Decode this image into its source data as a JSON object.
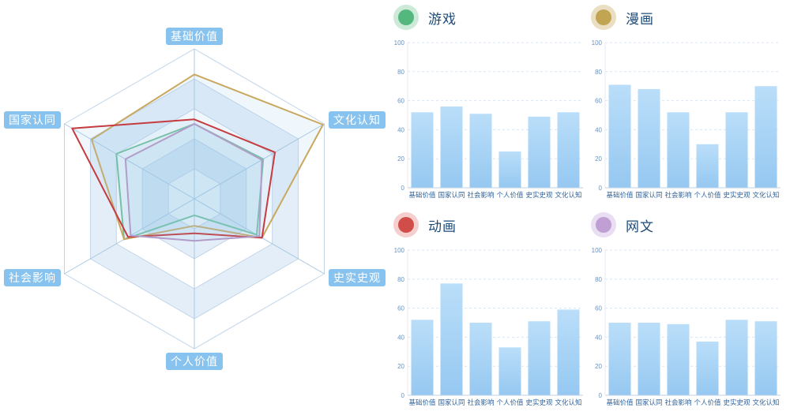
{
  "chart_data": [
    {
      "type": "radar",
      "title": "",
      "categories": [
        "基础价值",
        "文化认知",
        "史实史观",
        "个人价值",
        "社会影响",
        "国家认同"
      ],
      "rmax": 100,
      "levels": 5,
      "grid_shape": "hexagon",
      "legend_position": "none",
      "series": [
        {
          "name": "游戏",
          "values": [
            50,
            53,
            48,
            11,
            54,
            60
          ]
        },
        {
          "name": "漫画",
          "values": [
            83,
            99,
            52,
            18,
            54,
            79
          ]
        },
        {
          "name": "动画",
          "values": [
            53,
            62,
            52,
            23,
            51,
            94
          ]
        },
        {
          "name": "网文",
          "values": [
            50,
            52,
            50,
            28,
            49,
            53
          ]
        }
      ]
    },
    {
      "type": "bar",
      "title": "",
      "categories": [
        "基础价值",
        "国家认同",
        "社会影响",
        "个人价值",
        "史实史观",
        "文化认知"
      ],
      "xlabel": "",
      "ylabel": "",
      "ylim": [
        0,
        100
      ],
      "y_ticks": [
        0,
        20,
        40,
        60,
        80,
        100
      ],
      "grid": "dashed-horizontal",
      "series": [
        {
          "name": "游戏",
          "values": [
            52,
            56,
            51,
            25,
            49,
            52
          ]
        },
        {
          "name": "漫画",
          "values": [
            71,
            68,
            52,
            30,
            52,
            70
          ]
        },
        {
          "name": "动画",
          "values": [
            52,
            77,
            50,
            33,
            51,
            59
          ]
        },
        {
          "name": "网文",
          "values": [
            50,
            50,
            49,
            37,
            52,
            51
          ]
        }
      ]
    }
  ],
  "style": {
    "series": [
      {
        "line": "#6abf90",
        "marker": "#54b87e",
        "halo": "#cde9d8"
      },
      {
        "line": "#c9a85e",
        "marker": "#c2a553",
        "halo": "#eadfc2"
      },
      {
        "line": "#c53b3e",
        "marker": "#d04d49",
        "halo": "#f4cfce"
      },
      {
        "line": "#b29cc8",
        "marker": "#bf9fd4",
        "halo": "#e9def2"
      }
    ],
    "radar": {
      "ring_stroke": "#c2d5e8",
      "spoke_stroke": "#a9c8e2",
      "band_fill": "#e3eef9",
      "band_alt_fill": "#ffffff",
      "series_area_fill": "rgba(150,195,235,0.14)",
      "axis_label_bg": "#87c3ee",
      "axis_label_text": "#ffffff"
    },
    "bars": {
      "fill_top": "#badef9",
      "fill_bottom": "#96c8f1",
      "gridline": "#d9e5f0",
      "axis_line": "#bed2e4",
      "yaxis_line": "#e4edf5",
      "tick_label": "#6b92bb",
      "category_label": "#2f649e",
      "legend_text": "#1d4a77"
    }
  }
}
